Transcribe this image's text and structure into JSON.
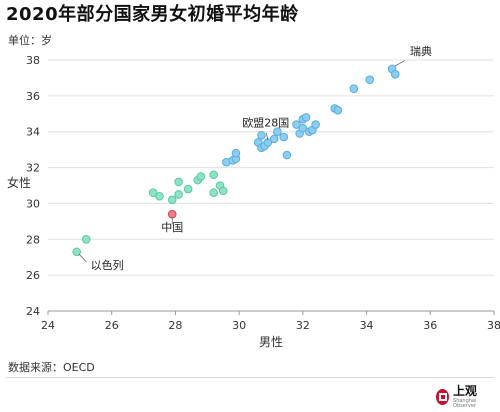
{
  "header": {
    "title": "2020年部分国家男女初婚平均年龄",
    "unit": "单位：岁"
  },
  "footer": {
    "source": "数据来源：OECD",
    "logo_text": "上观",
    "logo_sub": "Shanghai Observer"
  },
  "chart_data": {
    "type": "scatter",
    "title": "2020年部分国家男女初婚平均年龄",
    "xlabel": "男性",
    "ylabel": "女性",
    "xlim": [
      24,
      38
    ],
    "ylim": [
      24,
      38
    ],
    "xticks": [
      24,
      26,
      28,
      30,
      32,
      34,
      36,
      38
    ],
    "yticks": [
      24,
      26,
      28,
      30,
      32,
      34,
      36,
      38
    ],
    "grid": "horizontal",
    "colors": {
      "green": "#8ee3c4",
      "blue": "#8ccdf0",
      "red": "#f07a86"
    },
    "annotations": [
      {
        "text": "瑞典",
        "x": 34.8,
        "y": 37.5
      },
      {
        "text": "欧盟28国",
        "x": 30.9,
        "y": 33.4
      },
      {
        "text": "中国",
        "x": 27.9,
        "y": 29.4
      },
      {
        "text": "以色列",
        "x": 24.9,
        "y": 27.3
      }
    ],
    "series": [
      {
        "color": "green",
        "points": [
          [
            24.9,
            27.3
          ],
          [
            25.2,
            28.0
          ],
          [
            27.3,
            30.6
          ],
          [
            27.5,
            30.4
          ],
          [
            27.9,
            30.2
          ],
          [
            28.1,
            30.5
          ],
          [
            28.1,
            31.2
          ],
          [
            28.4,
            30.8
          ],
          [
            28.7,
            31.3
          ],
          [
            28.8,
            31.5
          ],
          [
            29.2,
            31.6
          ],
          [
            29.2,
            30.6
          ],
          [
            29.4,
            31.0
          ],
          [
            29.5,
            30.7
          ]
        ]
      },
      {
        "color": "blue",
        "points": [
          [
            29.6,
            32.3
          ],
          [
            29.8,
            32.4
          ],
          [
            29.9,
            32.5
          ],
          [
            29.9,
            32.8
          ],
          [
            30.6,
            33.4
          ],
          [
            30.7,
            33.1
          ],
          [
            30.7,
            33.8
          ],
          [
            30.8,
            33.2
          ],
          [
            30.9,
            33.4
          ],
          [
            31.1,
            33.6
          ],
          [
            31.2,
            34.0
          ],
          [
            31.4,
            33.7
          ],
          [
            31.5,
            32.7
          ],
          [
            31.8,
            34.4
          ],
          [
            31.9,
            33.9
          ],
          [
            32.0,
            34.2
          ],
          [
            32.0,
            34.7
          ],
          [
            32.1,
            34.8
          ],
          [
            32.2,
            34.0
          ],
          [
            32.3,
            34.1
          ],
          [
            32.4,
            34.4
          ],
          [
            33.0,
            35.3
          ],
          [
            33.1,
            35.2
          ],
          [
            33.6,
            36.4
          ],
          [
            34.1,
            36.9
          ],
          [
            34.8,
            37.5
          ],
          [
            34.9,
            37.2
          ]
        ]
      },
      {
        "color": "red",
        "points": [
          [
            27.9,
            29.4
          ]
        ]
      }
    ]
  }
}
